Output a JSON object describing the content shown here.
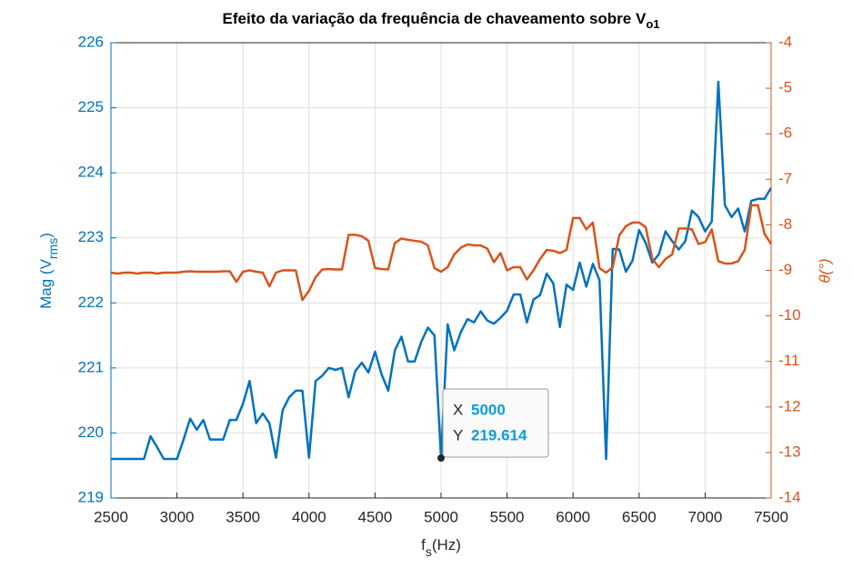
{
  "chart_data": {
    "type": "line",
    "title": "Efeito da variação da frequência de chaveamento sobre V",
    "title_subscript": "o1",
    "xlabel": "f",
    "xlabel_subscript": "s",
    "xlabel_tail": "(Hz)",
    "ylabel": "Mag (V",
    "ylabel_subscript": "rms",
    "ylabel_tail": ")",
    "y2label": "θ(°)",
    "x": [
      2500,
      2550,
      2600,
      2650,
      2700,
      2750,
      2800,
      2850,
      2900,
      2950,
      3000,
      3050,
      3100,
      3150,
      3200,
      3250,
      3300,
      3350,
      3400,
      3450,
      3500,
      3550,
      3600,
      3650,
      3700,
      3750,
      3800,
      3850,
      3900,
      3950,
      4000,
      4050,
      4100,
      4150,
      4200,
      4250,
      4300,
      4350,
      4400,
      4450,
      4500,
      4550,
      4600,
      4650,
      4700,
      4750,
      4800,
      4850,
      4900,
      4950,
      5000,
      5050,
      5100,
      5150,
      5200,
      5250,
      5300,
      5350,
      5400,
      5450,
      5500,
      5550,
      5600,
      5650,
      5700,
      5750,
      5800,
      5850,
      5900,
      5950,
      6000,
      6050,
      6100,
      6150,
      6200,
      6250,
      6300,
      6350,
      6400,
      6450,
      6500,
      6550,
      6600,
      6650,
      6700,
      6750,
      6800,
      6850,
      6900,
      6950,
      7000,
      7050,
      7100,
      7150,
      7200,
      7250,
      7300,
      7350,
      7400,
      7450,
      7500
    ],
    "series": [
      {
        "name": "Mag",
        "color": "#0072BD",
        "axis": "y",
        "values": [
          219.6,
          219.6,
          219.6,
          219.6,
          219.6,
          219.6,
          219.95,
          219.78,
          219.6,
          219.6,
          219.6,
          219.9,
          220.22,
          220.05,
          220.2,
          219.9,
          219.9,
          219.9,
          220.2,
          220.2,
          220.45,
          220.8,
          220.15,
          220.3,
          220.15,
          219.62,
          220.35,
          220.55,
          220.65,
          220.65,
          219.62,
          220.8,
          220.88,
          221.0,
          220.97,
          221.0,
          220.55,
          220.95,
          221.08,
          220.93,
          221.25,
          220.9,
          220.65,
          221.27,
          221.48,
          221.1,
          221.1,
          221.4,
          221.62,
          221.5,
          219.614,
          221.67,
          221.27,
          221.55,
          221.75,
          221.7,
          221.87,
          221.73,
          221.68,
          221.77,
          221.88,
          222.13,
          222.13,
          221.7,
          222.05,
          222.12,
          222.45,
          222.3,
          221.63,
          222.28,
          222.2,
          222.62,
          222.25,
          222.6,
          222.35,
          219.6,
          222.83,
          222.82,
          222.48,
          222.65,
          223.12,
          222.92,
          222.62,
          222.75,
          223.1,
          222.95,
          222.82,
          222.95,
          223.42,
          223.32,
          223.1,
          223.25,
          225.4,
          223.5,
          223.32,
          223.45,
          223.1,
          223.57,
          223.6,
          223.6,
          223.77
        ]
      },
      {
        "name": "θ",
        "color": "#D95319",
        "axis": "y2",
        "values": [
          -9.05,
          -9.07,
          -9.05,
          -9.05,
          -9.07,
          -9.05,
          -9.05,
          -9.07,
          -9.05,
          -9.05,
          -9.05,
          -9.03,
          -9.02,
          -9.03,
          -9.03,
          -9.03,
          -9.03,
          -9.02,
          -9.02,
          -9.25,
          -9.03,
          -9.0,
          -9.03,
          -9.05,
          -9.35,
          -9.05,
          -9.0,
          -9.0,
          -9.0,
          -9.65,
          -9.45,
          -9.15,
          -8.98,
          -8.97,
          -8.98,
          -8.98,
          -8.22,
          -8.22,
          -8.25,
          -8.35,
          -8.95,
          -8.97,
          -8.98,
          -8.4,
          -8.3,
          -8.33,
          -8.35,
          -8.37,
          -8.45,
          -8.95,
          -9.03,
          -8.93,
          -8.65,
          -8.5,
          -8.43,
          -8.45,
          -8.45,
          -8.52,
          -8.82,
          -8.62,
          -9.0,
          -8.93,
          -8.93,
          -9.2,
          -9.0,
          -8.75,
          -8.55,
          -8.57,
          -8.62,
          -8.55,
          -7.85,
          -7.85,
          -8.1,
          -7.95,
          -8.95,
          -9.05,
          -8.93,
          -8.23,
          -8.03,
          -7.95,
          -7.95,
          -8.05,
          -8.75,
          -8.93,
          -8.75,
          -8.65,
          -8.08,
          -8.08,
          -8.1,
          -8.42,
          -8.38,
          -8.1,
          -8.8,
          -8.85,
          -8.85,
          -8.8,
          -8.55,
          -7.57,
          -7.57,
          -8.2,
          -8.42
        ]
      }
    ],
    "xlim": [
      2500,
      7500
    ],
    "xticks": [
      2500,
      3000,
      3500,
      4000,
      4500,
      5000,
      5500,
      6000,
      6500,
      7000,
      7500
    ],
    "ylim": [
      219,
      226
    ],
    "yticks": [
      219,
      220,
      221,
      222,
      223,
      224,
      225,
      226
    ],
    "y2lim": [
      -14,
      -4
    ],
    "y2ticks": [
      -14,
      -13,
      -12,
      -11,
      -10,
      -9,
      -8,
      -7,
      -6,
      -5,
      -4
    ],
    "grid": true,
    "datatip": {
      "x_label": "X",
      "x": 5000,
      "y_label": "Y",
      "y": 219.614
    }
  }
}
